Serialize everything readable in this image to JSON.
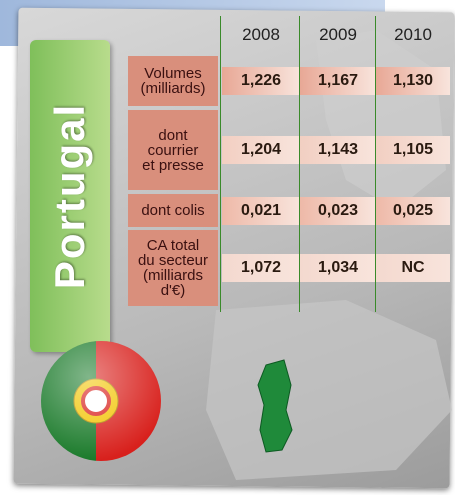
{
  "title": "Portugal",
  "table": {
    "header": [
      "2008",
      "2009",
      "2010"
    ],
    "rows": [
      {
        "label": "Volumes\n(milliards)",
        "cells": [
          "1,226",
          "1,167",
          "1,130"
        ]
      },
      {
        "label": "dont\ncourrier\net presse",
        "cells": [
          "1,204",
          "1,143",
          "1,105"
        ]
      },
      {
        "label": "dont colis",
        "cells": [
          "0,021",
          "0,023",
          "0,025"
        ]
      },
      {
        "label": "CA total\ndu secteur\n(milliards\nd'€)",
        "cells": [
          "1,072",
          "1,034",
          "NC"
        ]
      }
    ]
  }
}
